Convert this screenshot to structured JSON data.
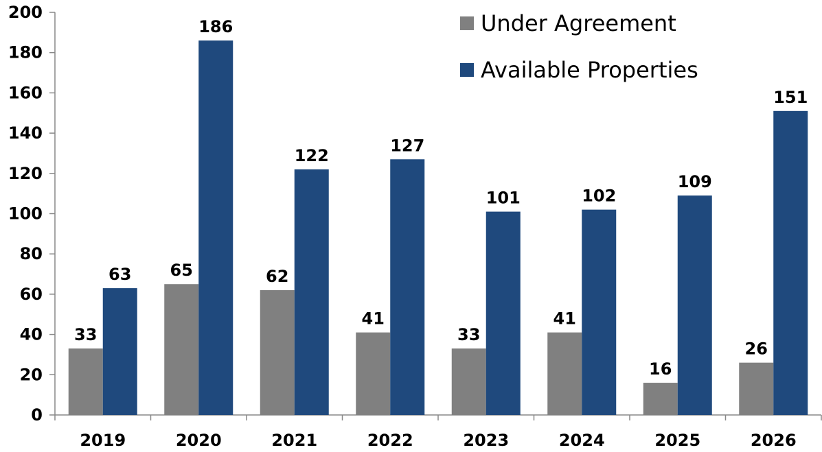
{
  "chart_data": {
    "type": "bar",
    "categories": [
      "2019",
      "2020",
      "2021",
      "2022",
      "2023",
      "2024",
      "2025",
      "2026"
    ],
    "series": [
      {
        "name": "Under Agreement",
        "values": [
          33,
          65,
          62,
          41,
          33,
          41,
          16,
          26
        ],
        "color": "#808080"
      },
      {
        "name": "Available Properties",
        "values": [
          63,
          186,
          122,
          127,
          101,
          102,
          109,
          151
        ],
        "color": "#1F497D"
      }
    ],
    "ylim": [
      0,
      200
    ],
    "yticks": [
      0,
      20,
      40,
      60,
      80,
      100,
      120,
      140,
      160,
      180,
      200
    ],
    "grid": false,
    "legend_position": "top-right",
    "data_labels": true
  }
}
